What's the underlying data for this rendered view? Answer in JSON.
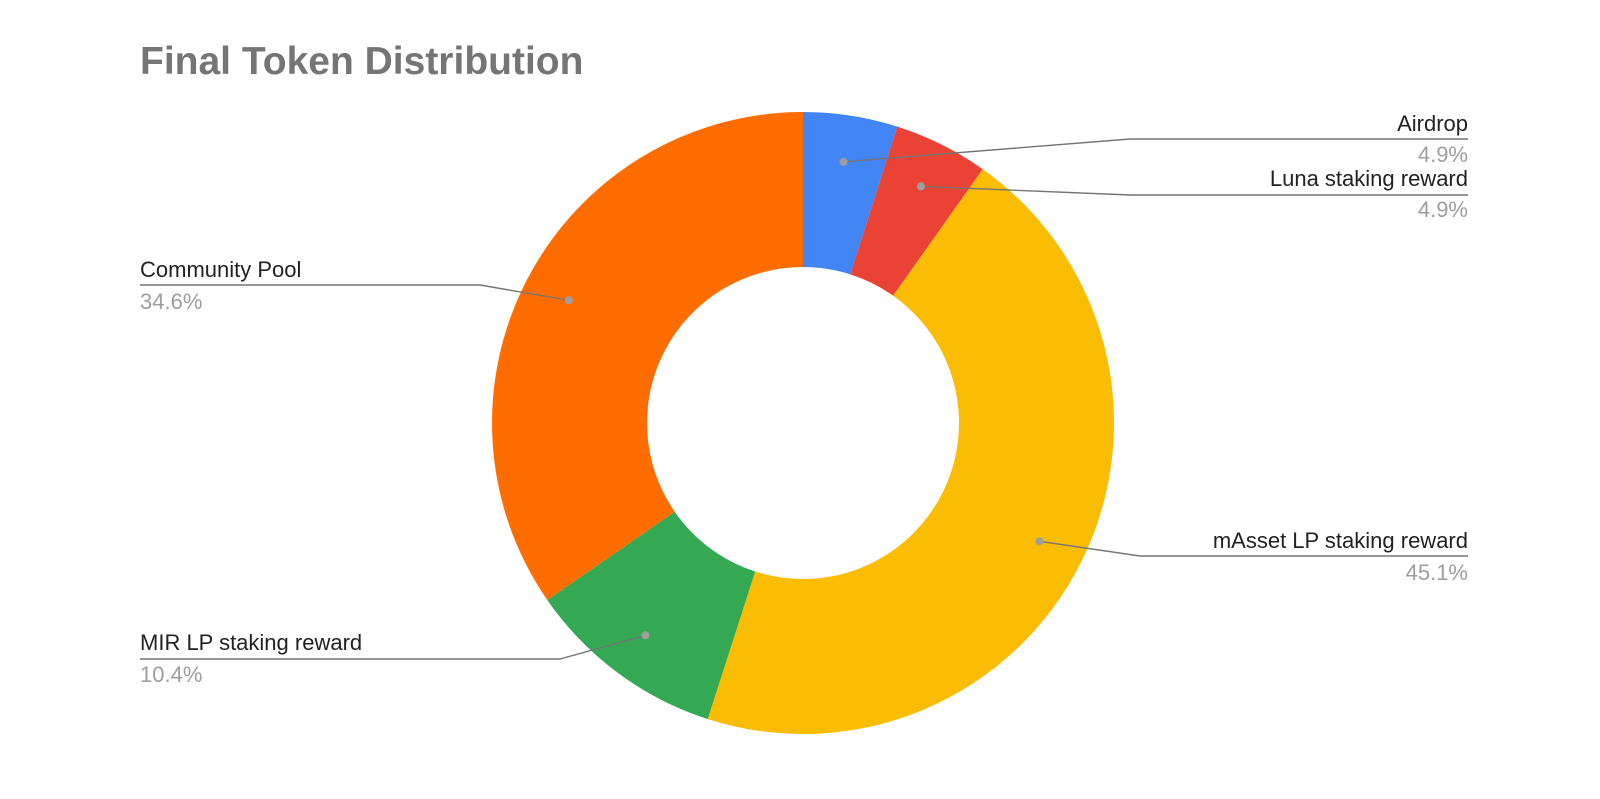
{
  "chart_data": {
    "type": "pie",
    "title": "Final Token Distribution",
    "donut": true,
    "slices": [
      {
        "label": "Airdrop",
        "value": 4.9,
        "value_label": "4.9%",
        "color": "#4285f4"
      },
      {
        "label": "Luna staking reward",
        "value": 4.9,
        "value_label": "4.9%",
        "color": "#ea4335"
      },
      {
        "label": "mAsset LP staking reward",
        "value": 45.1,
        "value_label": "45.1%",
        "color": "#fbbc04"
      },
      {
        "label": "MIR LP staking reward",
        "value": 10.4,
        "value_label": "10.4%",
        "color": "#34a853"
      },
      {
        "label": "Community Pool",
        "value": 34.6,
        "value_label": "34.6%",
        "color": "#ff6d01"
      }
    ],
    "legend": "none"
  }
}
